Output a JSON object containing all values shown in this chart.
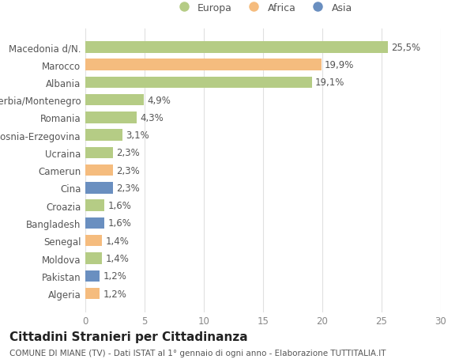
{
  "categories": [
    "Algeria",
    "Pakistan",
    "Moldova",
    "Senegal",
    "Bangladesh",
    "Croazia",
    "Cina",
    "Camerun",
    "Ucraina",
    "Bosnia-Erzegovina",
    "Romania",
    "Serbia/Montenegro",
    "Albania",
    "Marocco",
    "Macedonia d/N."
  ],
  "values": [
    1.2,
    1.2,
    1.4,
    1.4,
    1.6,
    1.6,
    2.3,
    2.3,
    2.3,
    3.1,
    4.3,
    4.9,
    19.1,
    19.9,
    25.5
  ],
  "labels": [
    "1,2%",
    "1,2%",
    "1,4%",
    "1,4%",
    "1,6%",
    "1,6%",
    "2,3%",
    "2,3%",
    "2,3%",
    "3,1%",
    "4,3%",
    "4,9%",
    "19,1%",
    "19,9%",
    "25,5%"
  ],
  "colors": [
    "#f5bc7e",
    "#6a8fc0",
    "#b5cc85",
    "#f5bc7e",
    "#6a8fc0",
    "#b5cc85",
    "#6a8fc0",
    "#f5bc7e",
    "#b5cc85",
    "#b5cc85",
    "#b5cc85",
    "#b5cc85",
    "#b5cc85",
    "#f5bc7e",
    "#b5cc85"
  ],
  "legend_labels": [
    "Europa",
    "Africa",
    "Asia"
  ],
  "legend_colors": [
    "#b5cc85",
    "#f5bc7e",
    "#6a8fc0"
  ],
  "title": "Cittadini Stranieri per Cittadinanza",
  "subtitle": "COMUNE DI MIANE (TV) - Dati ISTAT al 1° gennaio di ogni anno - Elaborazione TUTTITALIA.IT",
  "xlim": [
    0,
    30
  ],
  "xticks": [
    0,
    5,
    10,
    15,
    20,
    25,
    30
  ],
  "bar_height": 0.65,
  "background_color": "#ffffff",
  "grid_color": "#e0e0e0",
  "label_fontsize": 8.5,
  "tick_fontsize": 8.5,
  "title_fontsize": 11,
  "subtitle_fontsize": 7.5
}
